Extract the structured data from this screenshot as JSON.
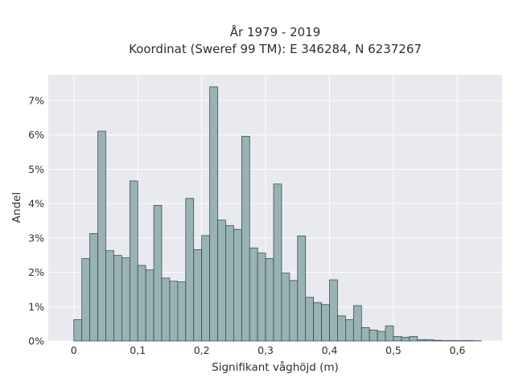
{
  "chart_data": {
    "type": "bar",
    "title": [
      "År 1979 - 2019",
      "Koordinat (Sweref 99 TM): E 346284, N 6237267"
    ],
    "xlabel": "Signifikant våghöjd (m)",
    "ylabel": "Andel",
    "xlim": [
      -0.04,
      0.67
    ],
    "ylim": [
      0,
      7.75
    ],
    "x_ticks": [
      0,
      0.1,
      0.2,
      0.3,
      0.4,
      0.5,
      0.6
    ],
    "x_tick_labels": [
      "0",
      "0,1",
      "0,2",
      "0,3",
      "0,4",
      "0,5",
      "0,6"
    ],
    "y_ticks": [
      0,
      1,
      2,
      3,
      4,
      5,
      6,
      7
    ],
    "y_tick_labels": [
      "0%",
      "1%",
      "2%",
      "3%",
      "4%",
      "5%",
      "6%",
      "7%"
    ],
    "bin_width": 0.0125,
    "bin_starts": [
      0,
      0.0125,
      0.025,
      0.0375,
      0.05,
      0.0625,
      0.075,
      0.0875,
      0.1,
      0.1125,
      0.125,
      0.1375,
      0.15,
      0.1625,
      0.175,
      0.1875,
      0.2,
      0.2125,
      0.225,
      0.2375,
      0.25,
      0.2625,
      0.275,
      0.2875,
      0.3,
      0.3125,
      0.325,
      0.3375,
      0.35,
      0.3625,
      0.375,
      0.3875,
      0.4,
      0.4125,
      0.425,
      0.4375,
      0.45,
      0.4625,
      0.475,
      0.4875,
      0.5,
      0.5125,
      0.525,
      0.5375,
      0.55,
      0.5625,
      0.575,
      0.5875,
      0.6,
      0.6125,
      0.625
    ],
    "values": [
      0.62,
      2.4,
      3.13,
      6.11,
      2.63,
      2.49,
      2.42,
      4.66,
      2.2,
      2.07,
      3.95,
      1.83,
      1.74,
      1.72,
      4.15,
      2.66,
      3.07,
      7.4,
      3.52,
      3.36,
      3.25,
      5.96,
      2.71,
      2.56,
      2.4,
      4.57,
      1.98,
      1.76,
      3.06,
      1.27,
      1.12,
      1.06,
      1.78,
      0.73,
      0.62,
      1.03,
      0.39,
      0.32,
      0.28,
      0.44,
      0.13,
      0.11,
      0.13,
      0.04,
      0.04,
      0.02,
      0.01,
      0.01,
      0.01,
      0.01,
      0.005
    ],
    "colors": {
      "plot_background": "#e9e9f0",
      "bar_fill": "#98b3b3",
      "bar_edge": "#2f3f3f",
      "grid": "#ffffff"
    },
    "grid": true,
    "legend": "none"
  }
}
